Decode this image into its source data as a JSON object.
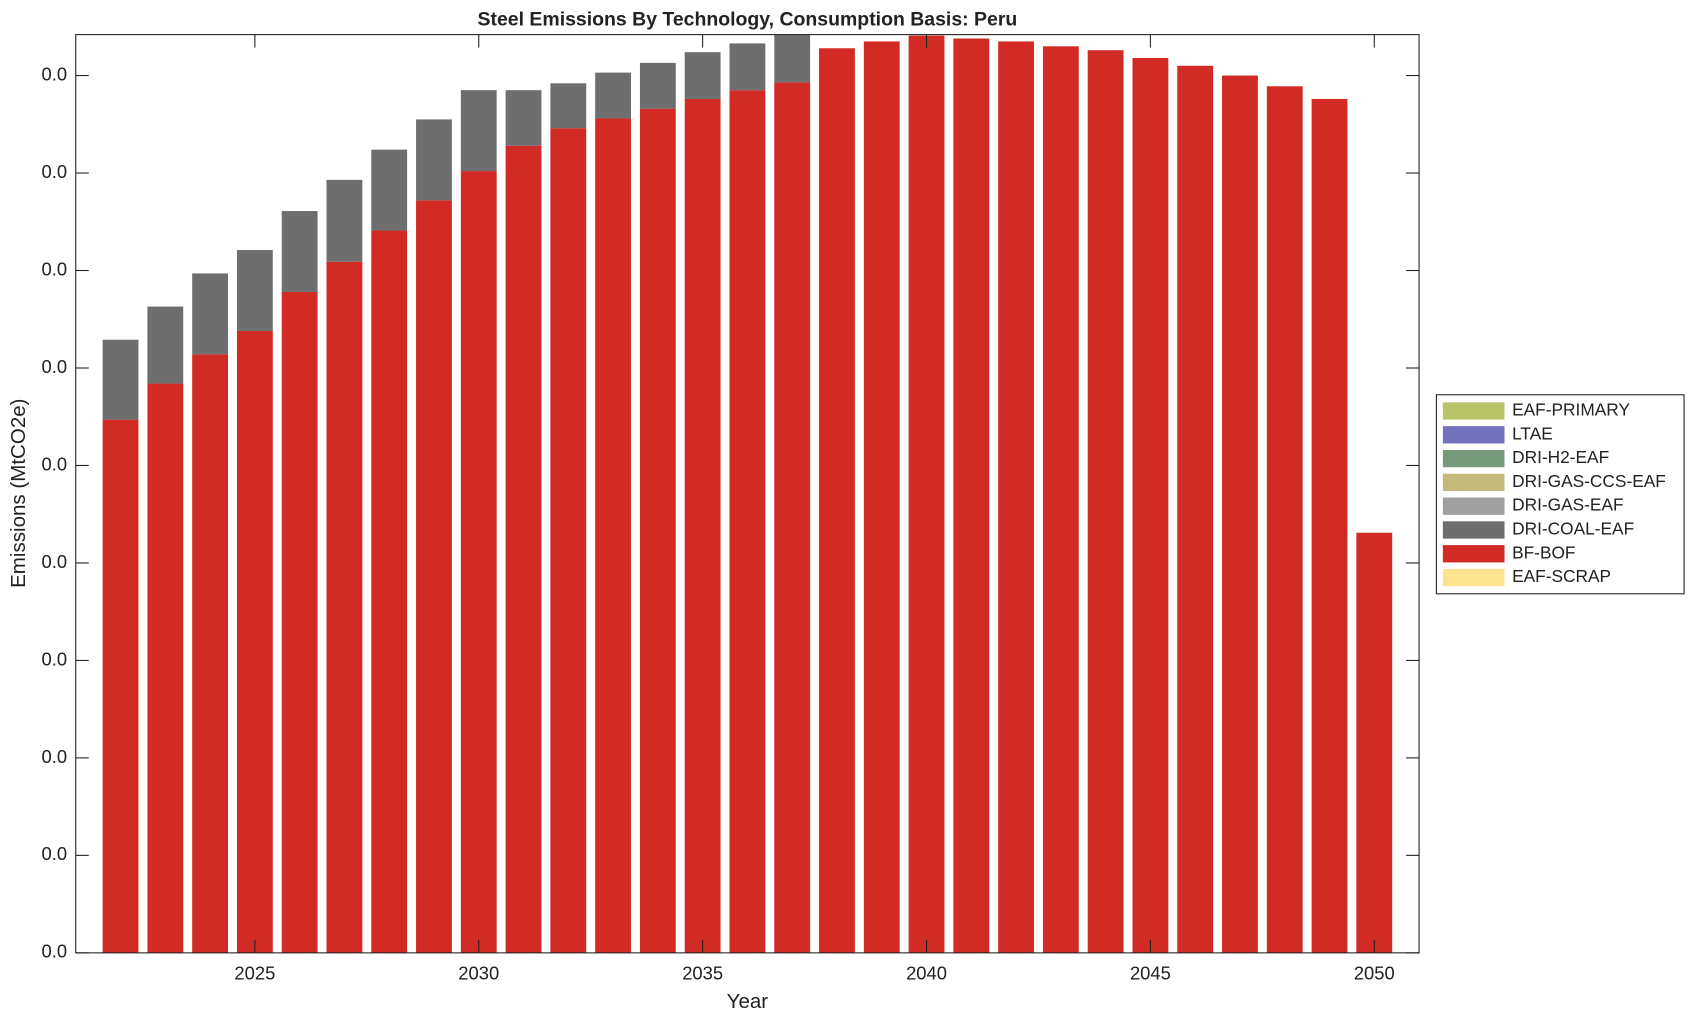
{
  "chart_data": {
    "type": "bar",
    "stacked": true,
    "title": "Steel Emissions By Technology, Consumption Basis: Peru",
    "x_label": "Year",
    "y_label": "Emissions (MtCO2e)",
    "x": [
      2022,
      2023,
      2024,
      2025,
      2026,
      2027,
      2028,
      2029,
      2030,
      2031,
      2032,
      2033,
      2034,
      2035,
      2036,
      2037,
      2038,
      2039,
      2040,
      2041,
      2042,
      2043,
      2044,
      2045,
      2046,
      2047,
      2048,
      2049,
      2050
    ],
    "xlim": [
      2021,
      2051
    ],
    "xticks": [
      2025,
      2030,
      2035,
      2040,
      2045,
      2050
    ],
    "ylim": [
      0,
      0.0942
    ],
    "yticks": [
      {
        "value": 0,
        "label": "0.0"
      },
      {
        "value": 0.01,
        "label": "0.0"
      },
      {
        "value": 0.02,
        "label": "0.0"
      },
      {
        "value": 0.03,
        "label": "0.0"
      },
      {
        "value": 0.04,
        "label": "0.0"
      },
      {
        "value": 0.05,
        "label": "0.0"
      },
      {
        "value": 0.06,
        "label": "0.0"
      },
      {
        "value": 0.07,
        "label": "0.0"
      },
      {
        "value": 0.08,
        "label": "0.0"
      },
      {
        "value": 0.09,
        "label": "0.0"
      }
    ],
    "legend": "outside-right",
    "series": [
      {
        "name": "EAF-SCRAP",
        "color": "#fde38f",
        "values": [
          0,
          0,
          0,
          0,
          0,
          0,
          0,
          0,
          0,
          0,
          0,
          0,
          0,
          0,
          0,
          0,
          0,
          0,
          0,
          0,
          0,
          0,
          0,
          0,
          0,
          0,
          0,
          0,
          0
        ]
      },
      {
        "name": "BF-BOF",
        "color": "#d22a24",
        "values": [
          0.0547,
          0.0584,
          0.0614,
          0.0638,
          0.0678,
          0.0709,
          0.0741,
          0.0772,
          0.0802,
          0.0828,
          0.0846,
          0.0856,
          0.0866,
          0.0876,
          0.0885,
          0.0893,
          0.0928,
          0.0935,
          0.0941,
          0.0938,
          0.0935,
          0.093,
          0.0926,
          0.0918,
          0.091,
          0.09,
          0.0889,
          0.0876,
          0.0431
        ]
      },
      {
        "name": "DRI-COAL-EAF",
        "color": "#6e6e6e",
        "values": [
          0.0082,
          0.0079,
          0.0083,
          0.0083,
          0.0083,
          0.0084,
          0.0083,
          0.0083,
          0.0083,
          0.0057,
          0.0046,
          0.0047,
          0.0047,
          0.0048,
          0.0048,
          0.0052,
          0,
          0,
          0,
          0,
          0,
          0,
          0,
          0,
          0,
          0,
          0,
          0,
          0
        ]
      },
      {
        "name": "DRI-GAS-EAF",
        "color": "#a0a0a0",
        "values": [
          0,
          0,
          0,
          0,
          0,
          0,
          0,
          0,
          0,
          0,
          0,
          0,
          0,
          0,
          0,
          0,
          0,
          0,
          0,
          0,
          0,
          0,
          0,
          0,
          0,
          0,
          0,
          0,
          0
        ]
      },
      {
        "name": "DRI-GAS-CCS-EAF",
        "color": "#c2b97b",
        "values": [
          0,
          0,
          0,
          0,
          0,
          0,
          0,
          0,
          0,
          0,
          0,
          0,
          0,
          0,
          0,
          0,
          0,
          0,
          0,
          0,
          0,
          0,
          0,
          0,
          0,
          0,
          0,
          0,
          0
        ]
      },
      {
        "name": "DRI-H2-EAF",
        "color": "#779a7d",
        "values": [
          0,
          0,
          0,
          0,
          0,
          0,
          0,
          0,
          0,
          0,
          0,
          0,
          0,
          0,
          0,
          0,
          0,
          0,
          0,
          0,
          0,
          0,
          0,
          0,
          0,
          0,
          0,
          0,
          0
        ]
      },
      {
        "name": "LTAE",
        "color": "#7472bd",
        "values": [
          0,
          0,
          0,
          0,
          0,
          0,
          0,
          0,
          0,
          0,
          0,
          0,
          0,
          0,
          0,
          0,
          0,
          0,
          0,
          0,
          0,
          0,
          0,
          0,
          0,
          0,
          0,
          0,
          0
        ]
      },
      {
        "name": "EAF-PRIMARY",
        "color": "#b9c46a",
        "values": [
          0,
          0,
          0,
          0,
          0,
          0,
          0,
          0,
          0,
          0,
          0,
          0,
          0,
          0,
          0,
          0,
          0,
          0,
          0,
          0,
          0,
          0,
          0,
          0,
          0,
          0,
          0,
          0,
          0
        ]
      }
    ]
  }
}
